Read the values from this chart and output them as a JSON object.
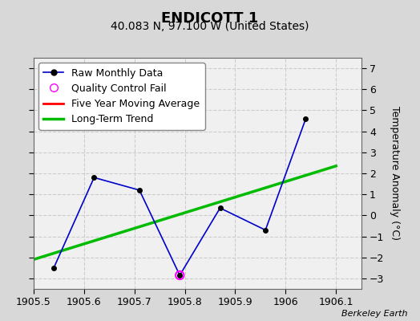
{
  "title": "ENDICOTT 1",
  "subtitle": "40.083 N, 97.100 W (United States)",
  "ylabel": "Temperature Anomaly (°C)",
  "watermark": "Berkeley Earth",
  "xlim": [
    1905.5,
    1906.15
  ],
  "ylim": [
    -3.5,
    7.5
  ],
  "yticks": [
    -3,
    -2,
    -1,
    0,
    1,
    2,
    3,
    4,
    5,
    6,
    7
  ],
  "xticks": [
    1905.5,
    1905.6,
    1905.7,
    1905.8,
    1905.9,
    1906.0,
    1906.1
  ],
  "xtick_labels": [
    "1905.5",
    "1905.6",
    "1905.7",
    "1905.8",
    "1905.9",
    "1906",
    "1906.1"
  ],
  "raw_x": [
    1905.54,
    1905.62,
    1905.71,
    1905.79,
    1905.87,
    1905.96,
    1906.04
  ],
  "raw_y": [
    -2.5,
    1.8,
    1.2,
    -2.85,
    0.35,
    -0.7,
    4.6
  ],
  "qc_fail_x": [
    1905.79
  ],
  "qc_fail_y": [
    -2.85
  ],
  "trend_x": [
    1905.5,
    1906.1
  ],
  "trend_y": [
    -2.1,
    2.35
  ],
  "raw_color": "#0000cc",
  "qc_color": "#ff00ff",
  "trend_color": "#00bb00",
  "trend_linewidth": 2.5,
  "fiveyear_color": "#ff0000",
  "background_color": "#d8d8d8",
  "plot_background": "#f0f0f0",
  "grid_color": "#cccccc",
  "title_fontsize": 13,
  "subtitle_fontsize": 10,
  "ylabel_fontsize": 9,
  "tick_fontsize": 9,
  "legend_fontsize": 9
}
